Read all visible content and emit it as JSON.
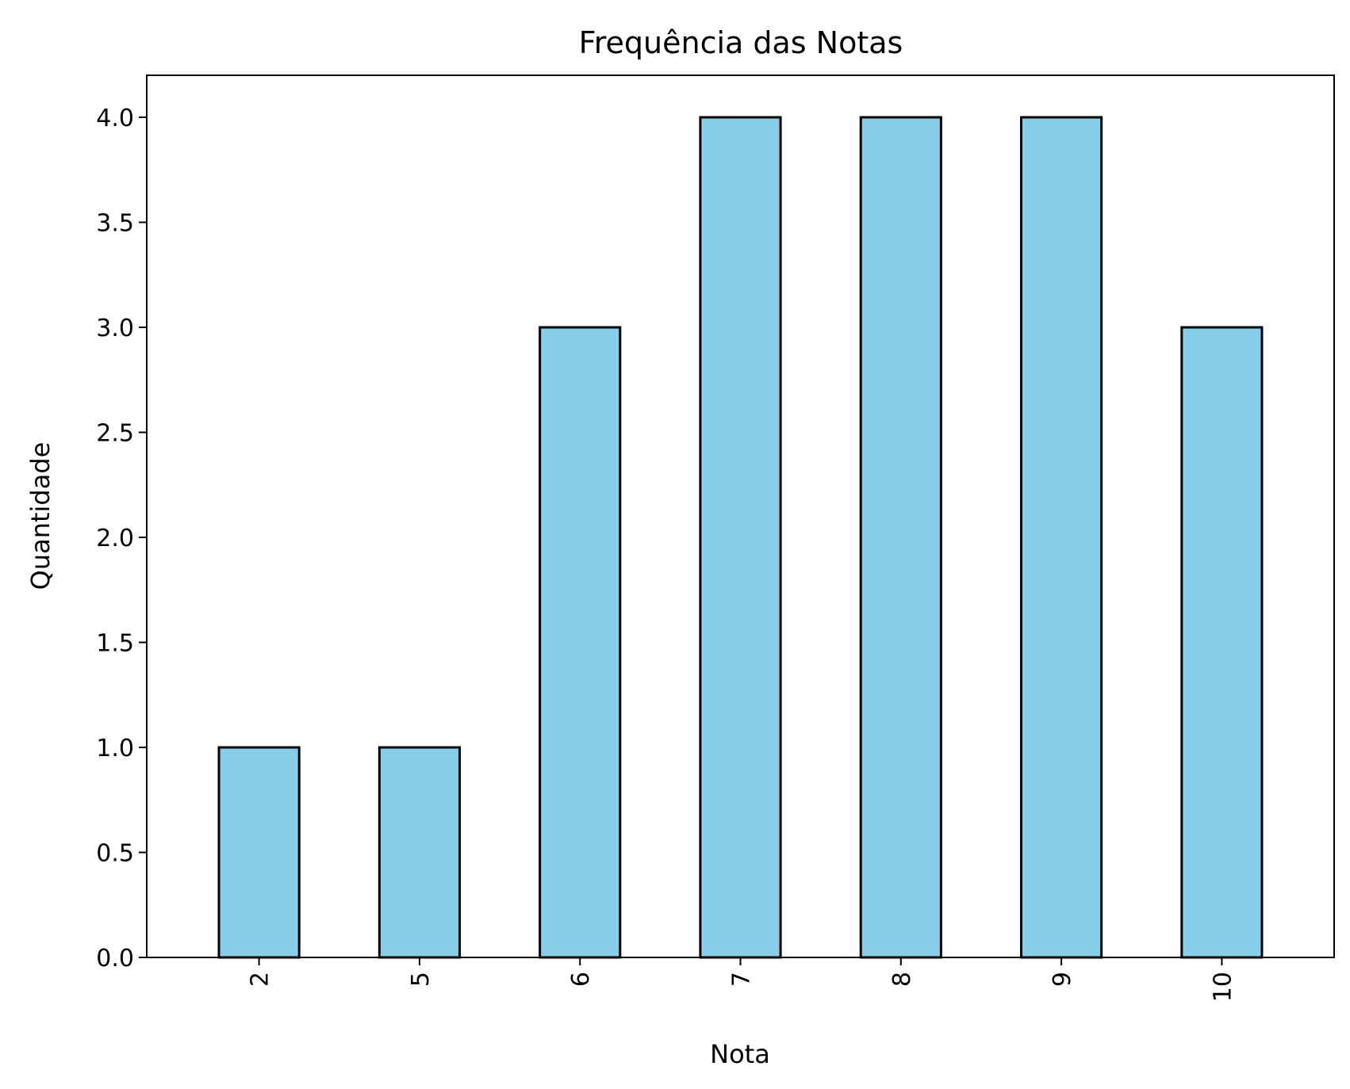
{
  "chart_data": {
    "type": "bar",
    "title": "Frequência das Notas",
    "xlabel": "Nota",
    "ylabel": "Quantidade",
    "categories": [
      "2",
      "5",
      "6",
      "7",
      "8",
      "9",
      "10"
    ],
    "values": [
      1,
      1,
      3,
      4,
      4,
      4,
      3
    ],
    "ylim": [
      0,
      4.2
    ],
    "yticks": [
      0.0,
      0.5,
      1.0,
      1.5,
      2.0,
      2.5,
      3.0,
      3.5,
      4.0
    ],
    "ytick_labels": [
      "0.0",
      "0.5",
      "1.0",
      "1.5",
      "2.0",
      "2.5",
      "3.0",
      "3.5",
      "4.0"
    ],
    "xtick_rotation": "vertical",
    "grid": false,
    "legend": "none",
    "colors": {
      "bar_fill": "#87CEEB",
      "bar_edge": "#000000"
    }
  }
}
